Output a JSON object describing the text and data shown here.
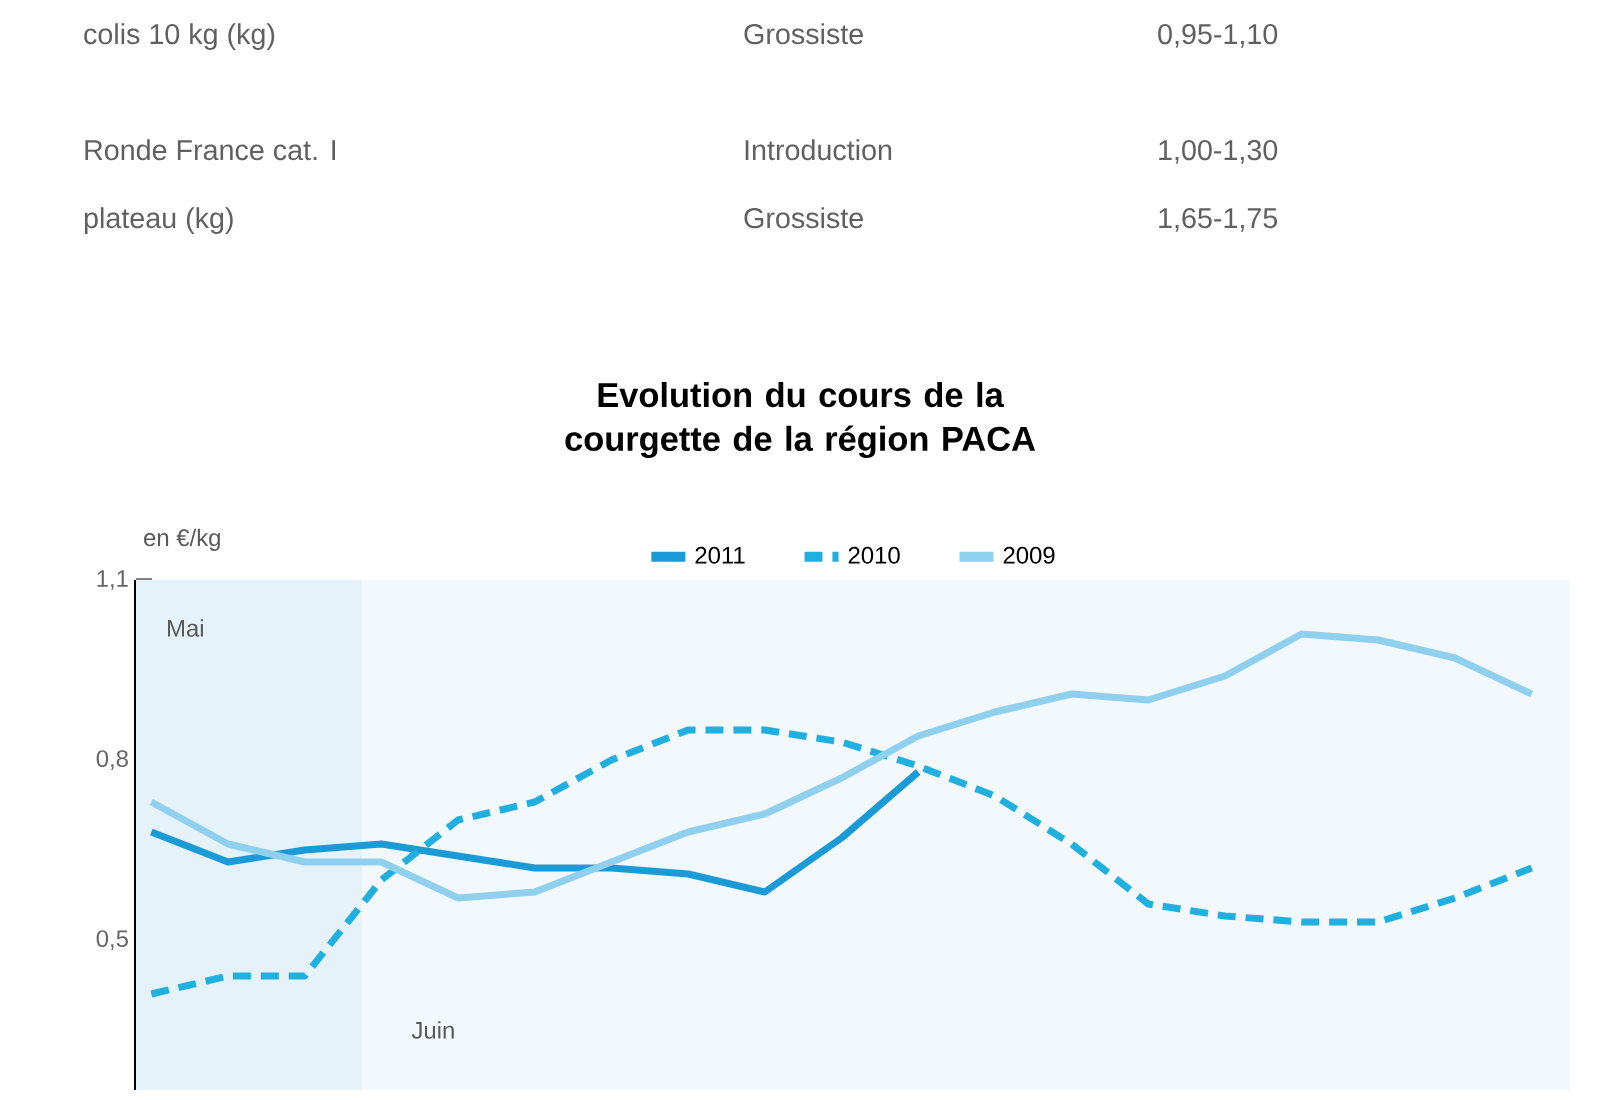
{
  "chart_data": {
    "type": "line",
    "title": "Evolution du cours de la courgette de la région PACA",
    "ylabel": "en €/kg",
    "categories": [
      null,
      null,
      null,
      null,
      null,
      null,
      null,
      null,
      null,
      null,
      null,
      null,
      null,
      null,
      null,
      null,
      null,
      null,
      null
    ],
    "series": [
      {
        "name": "2011",
        "color": "#1a9ad6",
        "line_style": "solid",
        "values": [
          0.68,
          0.63,
          0.65,
          0.66,
          0.64,
          0.62,
          0.62,
          0.61,
          0.58,
          0.67,
          0.78,
          null,
          null,
          null,
          null,
          null,
          null,
          null,
          null
        ]
      },
      {
        "name": "2010",
        "color": "#1fb0e0",
        "line_style": "dashed",
        "values": [
          0.41,
          0.44,
          0.44,
          0.6,
          0.7,
          0.73,
          0.8,
          0.85,
          0.85,
          0.83,
          0.79,
          0.74,
          0.66,
          0.56,
          0.54,
          0.53,
          0.53,
          0.57,
          0.62
        ]
      },
      {
        "name": "2009",
        "color": "#8fd0ee",
        "line_style": "solid",
        "values": [
          0.73,
          0.66,
          0.63,
          0.63,
          0.57,
          0.58,
          0.63,
          0.68,
          0.71,
          0.77,
          0.84,
          0.88,
          0.91,
          0.9,
          0.94,
          1.01,
          1.0,
          0.97,
          0.91
        ]
      }
    ],
    "ylim": [
      0.25,
      1.1
    ],
    "yticks": [
      {
        "value": 0.5,
        "label": "0,5"
      },
      {
        "value": 0.8,
        "label": "0,8"
      },
      {
        "value": 1.1,
        "label": "1,1"
      }
    ],
    "legend": "top",
    "grid": false,
    "annotations": [
      "colis 10 kg (kg)",
      "Grossiste",
      "0,95-1,10",
      "Ronde France cat. I",
      "Introduction",
      "1,00-1,30",
      "plateau (kg)",
      "Grossiste",
      "1,65-1,75",
      "Mai",
      "Juin"
    ]
  }
}
